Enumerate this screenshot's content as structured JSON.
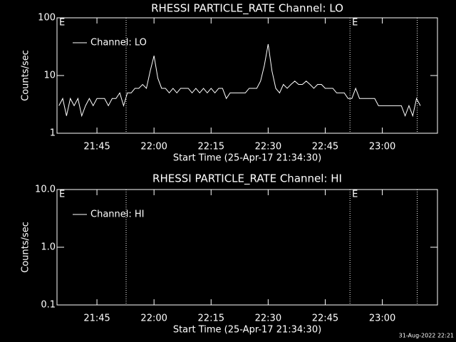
{
  "chart_data": [
    {
      "type": "line",
      "title": "RHESSI PARTICLE_RATE Channel: LO",
      "xlabel": "Start Time (25-Apr-17 21:34:30)",
      "ylabel": "Counts/sec",
      "log_y": true,
      "ylim": [
        1,
        100
      ],
      "yticks": [
        1,
        10,
        100
      ],
      "xlim": [
        "21:34:30",
        "23:14:30"
      ],
      "xticks": [
        "21:45",
        "22:00",
        "22:15",
        "22:30",
        "22:45",
        "23:00"
      ],
      "legend": "upper left",
      "markers": [
        "21:52:40",
        "22:51:30",
        "23:09:10"
      ],
      "annotations": [
        {
          "text": "E",
          "x": "21:34:30"
        },
        {
          "text": "E",
          "x": "22:51:30"
        }
      ],
      "series": [
        {
          "name": "Channel: LO",
          "color": "#ffffff",
          "x": [
            "21:35",
            "21:36",
            "21:37",
            "21:38",
            "21:39",
            "21:40",
            "21:41",
            "21:42",
            "21:43",
            "21:44",
            "21:45",
            "21:46",
            "21:47",
            "21:48",
            "21:49",
            "21:50",
            "21:51",
            "21:52",
            "21:53",
            "21:54",
            "21:55",
            "21:56",
            "21:57",
            "21:58",
            "21:59",
            "22:00",
            "22:01",
            "22:02",
            "22:03",
            "22:04",
            "22:05",
            "22:06",
            "22:07",
            "22:08",
            "22:09",
            "22:10",
            "22:11",
            "22:12",
            "22:13",
            "22:14",
            "22:15",
            "22:16",
            "22:17",
            "22:18",
            "22:19",
            "22:20",
            "22:21",
            "22:22",
            "22:23",
            "22:24",
            "22:25",
            "22:26",
            "22:27",
            "22:28",
            "22:29",
            "22:30",
            "22:31",
            "22:32",
            "22:33",
            "22:34",
            "22:35",
            "22:36",
            "22:37",
            "22:38",
            "22:39",
            "22:40",
            "22:41",
            "22:42",
            "22:43",
            "22:44",
            "22:45",
            "22:46",
            "22:47",
            "22:48",
            "22:49",
            "22:50",
            "22:51",
            "22:52",
            "22:53",
            "22:54",
            "22:55",
            "22:56",
            "22:57",
            "22:58",
            "22:59",
            "23:00",
            "23:01",
            "23:02",
            "23:03",
            "23:04",
            "23:05",
            "23:06",
            "23:07",
            "23:08",
            "23:09",
            "23:10"
          ],
          "values": [
            3,
            4,
            2,
            4,
            3,
            4,
            2,
            3,
            4,
            3,
            4,
            4,
            4,
            3,
            4,
            4,
            5,
            3,
            5,
            5,
            6,
            6,
            7,
            6,
            12,
            22,
            9,
            6,
            6,
            5,
            6,
            5,
            6,
            6,
            6,
            5,
            6,
            5,
            6,
            5,
            6,
            5,
            6,
            6,
            4,
            5,
            5,
            5,
            5,
            5,
            6,
            6,
            6,
            8,
            15,
            35,
            12,
            6,
            5,
            7,
            6,
            7,
            8,
            7,
            7,
            8,
            7,
            6,
            7,
            7,
            6,
            6,
            6,
            5,
            5,
            5,
            4,
            4,
            6,
            4,
            4,
            4,
            4,
            4,
            3,
            3,
            3,
            3,
            3,
            3,
            3,
            2,
            3,
            2,
            4,
            3
          ]
        }
      ]
    },
    {
      "type": "line",
      "title": "RHESSI PARTICLE_RATE Channel: HI",
      "xlabel": "Start Time (25-Apr-17 21:34:30)",
      "ylabel": "Counts/sec",
      "log_y": true,
      "ylim": [
        0.1,
        10
      ],
      "yticks": [
        {
          "value": 0.1,
          "label": "0.1"
        },
        {
          "value": 1,
          "label": "1.0"
        },
        {
          "value": 10,
          "label": "10.0"
        }
      ],
      "xlim": [
        "21:34:30",
        "23:14:30"
      ],
      "xticks": [
        "21:45",
        "22:00",
        "22:15",
        "22:30",
        "22:45",
        "23:00"
      ],
      "legend": "upper left",
      "markers": [
        "21:52:40",
        "22:51:30",
        "23:09:10"
      ],
      "annotations": [
        {
          "text": "E",
          "x": "21:34:30"
        },
        {
          "text": "E",
          "x": "22:51:30"
        }
      ],
      "series": [
        {
          "name": "Channel: HI",
          "color": "#ffffff",
          "x": [],
          "values": []
        }
      ]
    }
  ],
  "footer": "31-Aug-2022 22:21"
}
